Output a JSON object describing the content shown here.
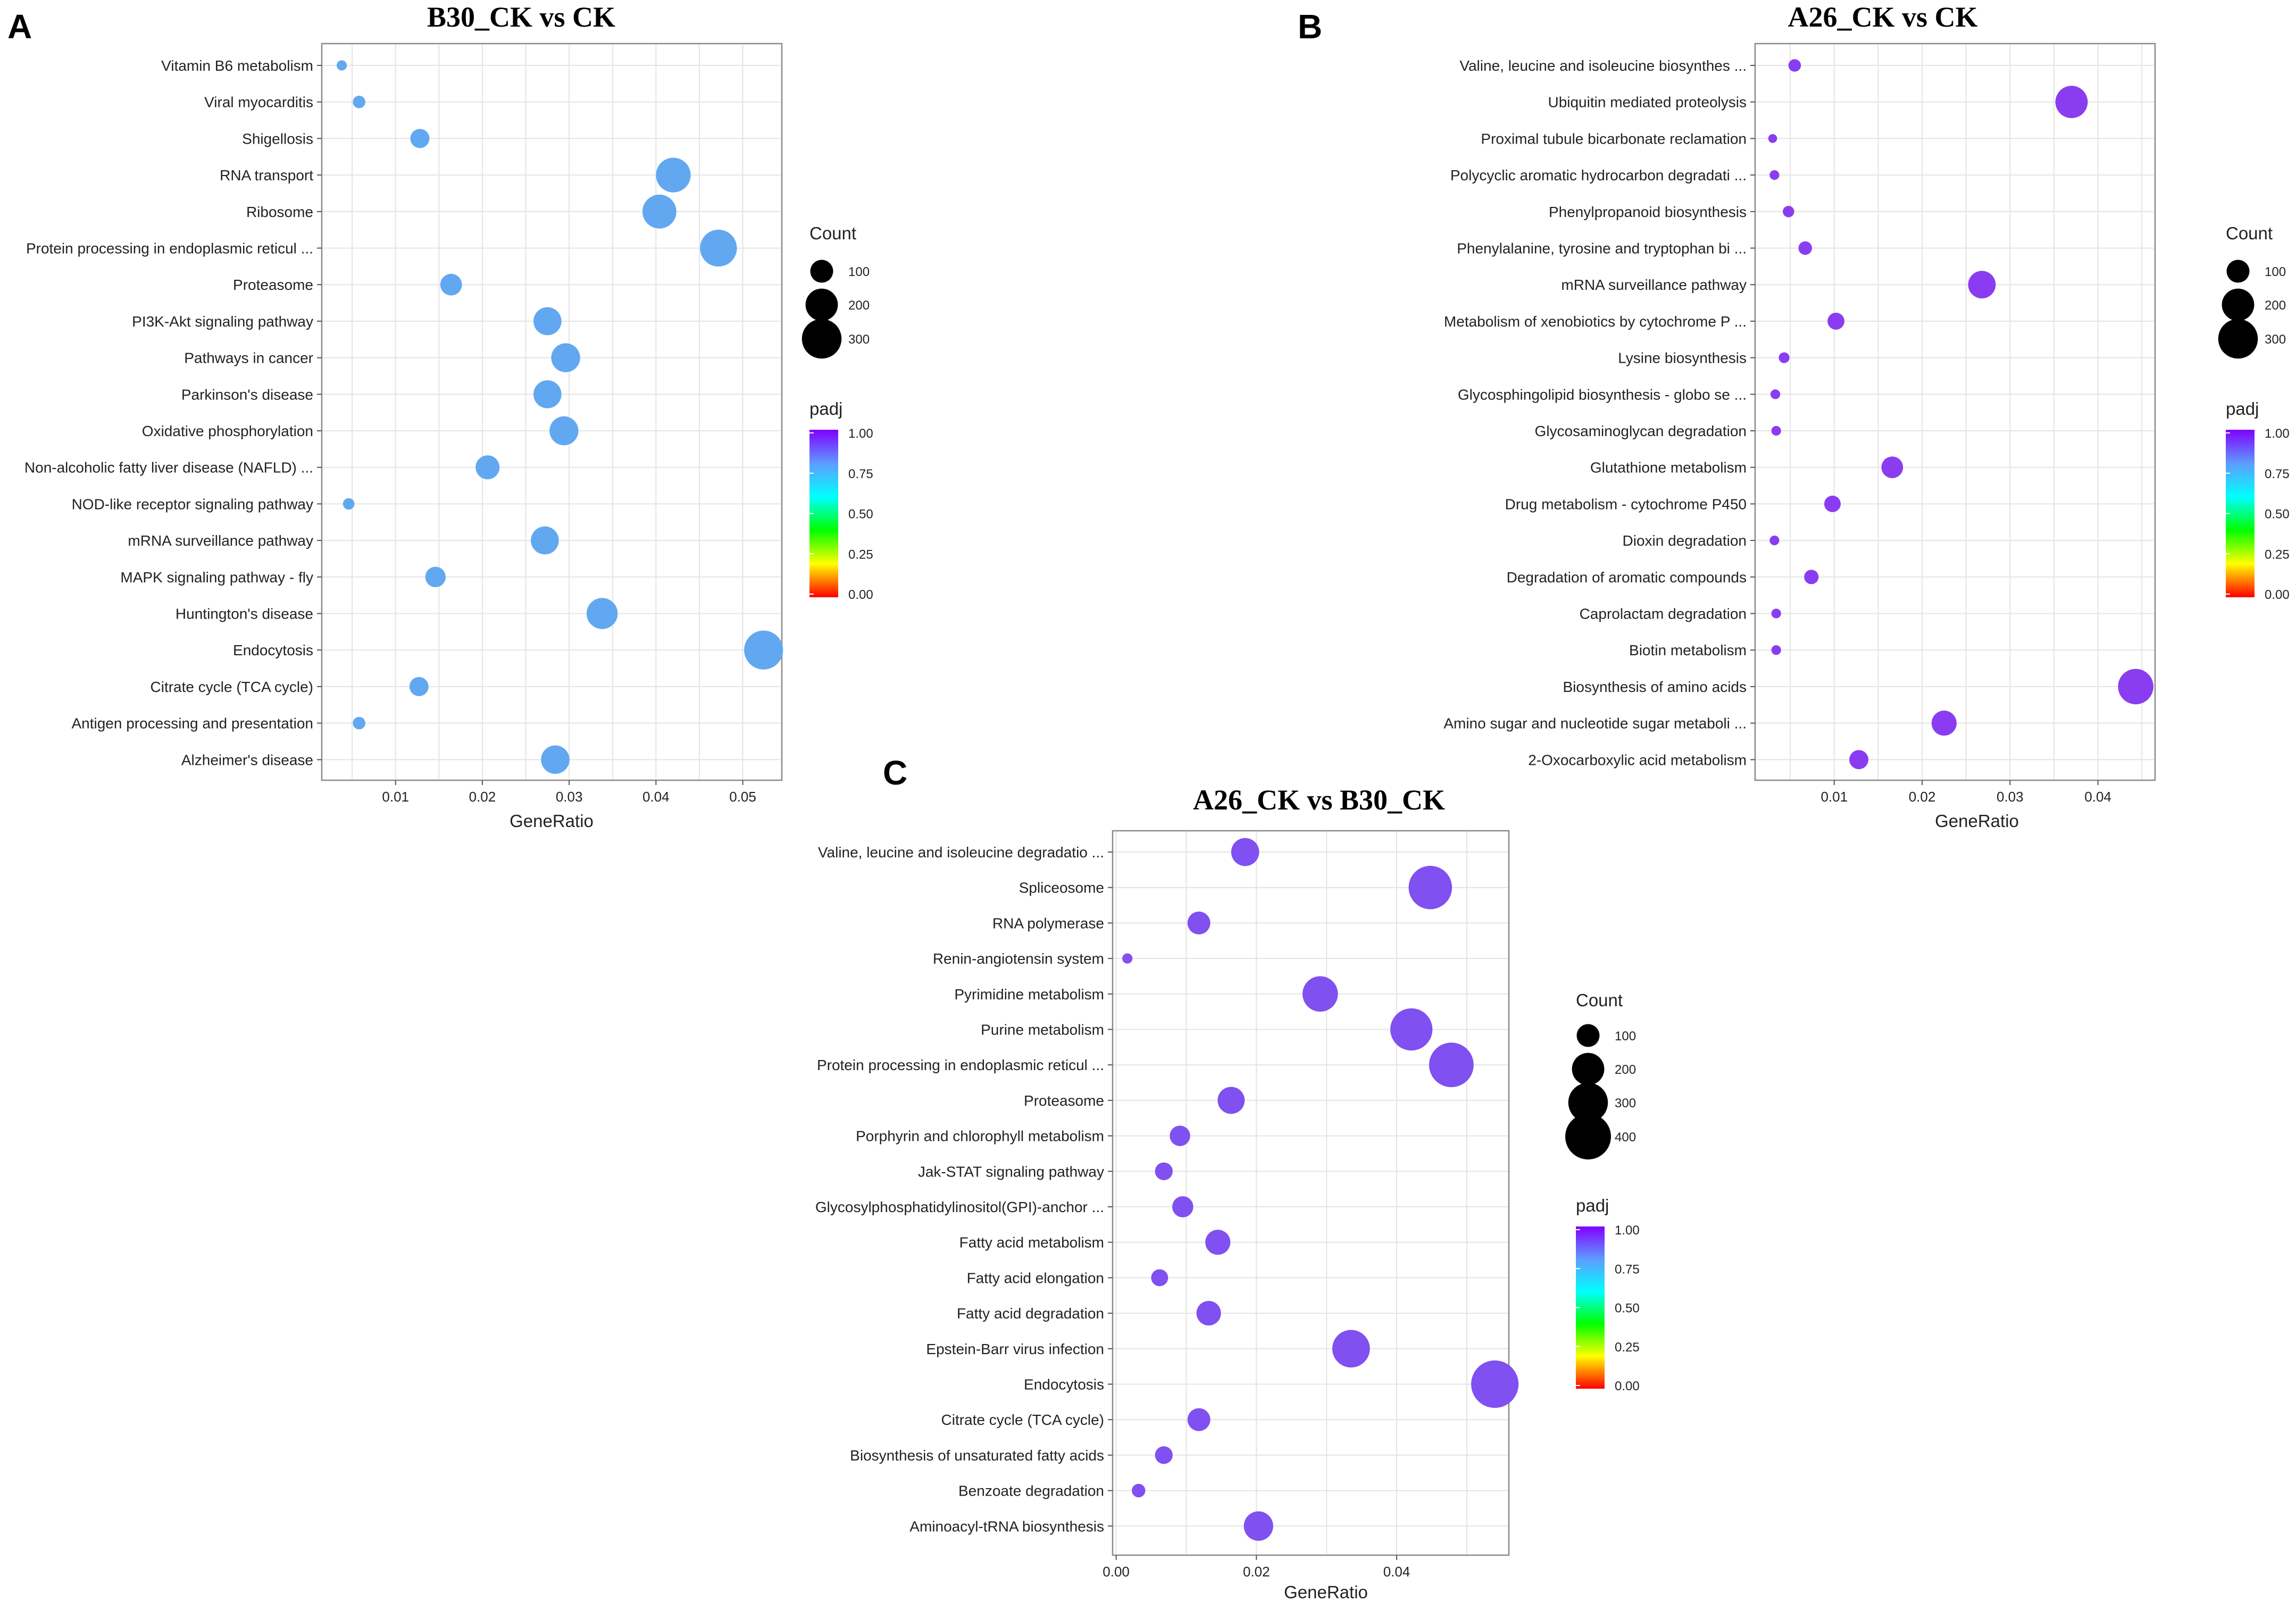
{
  "panels": {
    "A": "A",
    "B": "B",
    "C": "C"
  },
  "colors": {
    "scale_low": "#ff0000",
    "scale_mid1": "#ffff00",
    "scale_mid2": "#00ff00",
    "scale_mid3": "#00ffff",
    "scale_mid4": "#5f9bff",
    "scale_high": "#8000ff"
  },
  "chart_data": [
    {
      "panel": "A",
      "type": "scatter",
      "title": "B30_CK vs CK",
      "xlabel": "GeneRatio",
      "ylabel": "",
      "xlim": [
        0.0015,
        0.0545
      ],
      "xticks": [
        0.01,
        0.02,
        0.03,
        0.04,
        0.05
      ],
      "xtick_labels": [
        "0.01",
        "0.02",
        "0.03",
        "0.04",
        "0.05"
      ],
      "grid": true,
      "color": "#62a8f0",
      "categories": [
        "Vitamin B6 metabolism",
        "Viral myocarditis",
        "Shigellosis",
        "RNA transport",
        "Ribosome",
        "Protein processing in endoplasmic reticul ...",
        "Proteasome",
        "PI3K-Akt signaling pathway",
        "Pathways in cancer",
        "Parkinson's disease",
        "Oxidative phosphorylation",
        "Non-alcoholic fatty liver disease (NAFLD) ...",
        "NOD-like receptor signaling pathway",
        "mRNA surveillance pathway",
        "MAPK signaling pathway - fly",
        "Huntington's disease",
        "Endocytosis",
        "Citrate cycle (TCA cycle)",
        "Antigen processing and presentation",
        "Alzheimer's disease"
      ],
      "gene_ratio": [
        0.0038,
        0.0058,
        0.0128,
        0.042,
        0.0404,
        0.0472,
        0.0164,
        0.0275,
        0.0296,
        0.0275,
        0.0294,
        0.0206,
        0.0046,
        0.0272,
        0.0146,
        0.0338,
        0.0524,
        0.0127,
        0.0058,
        0.0284
      ],
      "count": [
        20,
        30,
        70,
        230,
        220,
        260,
        90,
        150,
        160,
        150,
        160,
        110,
        25,
        150,
        80,
        185,
        290,
        70,
        30,
        155
      ],
      "padj": [
        0.85,
        0.85,
        0.85,
        0.85,
        0.85,
        0.85,
        0.85,
        0.85,
        0.85,
        0.85,
        0.85,
        0.85,
        0.85,
        0.85,
        0.85,
        0.85,
        0.85,
        0.85,
        0.85,
        0.85
      ],
      "legend": {
        "size_title": "Count",
        "size_values": [
          100,
          200,
          300
        ],
        "size_labels": [
          "100",
          "200",
          "300"
        ],
        "color_title": "padj",
        "color_ticks": [
          "1.00",
          "0.75",
          "0.50",
          "0.25",
          "0.00"
        ]
      }
    },
    {
      "panel": "B",
      "type": "scatter",
      "title": "A26_CK vs CK",
      "xlabel": "GeneRatio",
      "ylabel": "",
      "xlim": [
        0.001,
        0.0465
      ],
      "xticks": [
        0.01,
        0.02,
        0.03,
        0.04
      ],
      "xtick_labels": [
        "0.01",
        "0.02",
        "0.03",
        "0.04"
      ],
      "grid": true,
      "color": "#8a3df0",
      "categories": [
        "Valine, leucine and isoleucine biosynthes ...",
        "Ubiquitin mediated proteolysis",
        "Proximal tubule bicarbonate reclamation",
        "Polycyclic aromatic hydrocarbon degradati ...",
        "Phenylpropanoid biosynthesis",
        "Phenylalanine, tyrosine and tryptophan bi ...",
        "mRNA surveillance pathway",
        "Metabolism of xenobiotics by cytochrome P ...",
        "Lysine biosynthesis",
        "Glycosphingolipid biosynthesis - globo se ...",
        "Glycosaminoglycan degradation",
        "Glutathione metabolism",
        "Drug metabolism - cytochrome P450",
        "Dioxin degradation",
        "Degradation of aromatic compounds",
        "Caprolactam degradation",
        "Biotin metabolism",
        "Biosynthesis of amino acids",
        "Amino sugar and nucleotide sugar metaboli ...",
        "2-Oxocarboxylic acid metabolism"
      ],
      "gene_ratio": [
        0.0055,
        0.037,
        0.003,
        0.0032,
        0.0048,
        0.0067,
        0.0268,
        0.0102,
        0.0043,
        0.0033,
        0.0034,
        0.0166,
        0.0098,
        0.0032,
        0.0074,
        0.0034,
        0.0034,
        0.0443,
        0.0225,
        0.0128
      ],
      "count": [
        30,
        200,
        15,
        18,
        25,
        35,
        145,
        55,
        22,
        18,
        18,
        90,
        52,
        18,
        40,
        18,
        18,
        240,
        120,
        70
      ],
      "padj": [
        0.95,
        0.95,
        0.95,
        0.95,
        0.95,
        0.95,
        0.95,
        0.95,
        0.95,
        0.95,
        0.95,
        0.95,
        0.95,
        0.95,
        0.95,
        0.95,
        0.95,
        0.95,
        0.95,
        0.95
      ],
      "legend": {
        "size_title": "Count",
        "size_values": [
          100,
          200,
          300
        ],
        "size_labels": [
          "100",
          "200",
          "300"
        ],
        "color_title": "padj",
        "color_ticks": [
          "1.00",
          "0.75",
          "0.50",
          "0.25",
          "0.00"
        ]
      }
    },
    {
      "panel": "C",
      "type": "scatter",
      "title": "A26_CK vs B30_CK",
      "xlabel": "GeneRatio",
      "ylabel": "",
      "xlim": [
        -0.0005,
        0.056
      ],
      "xticks": [
        0.0,
        0.02,
        0.04
      ],
      "xtick_labels": [
        "0.00",
        "0.02",
        "0.04"
      ],
      "grid": true,
      "color": "#8050f0",
      "categories": [
        "Valine, leucine and isoleucine degradatio ...",
        "Spliceosome",
        "RNA polymerase",
        "Renin-angiotensin system",
        "Pyrimidine metabolism",
        "Purine metabolism",
        "Protein processing in endoplasmic reticul ...",
        "Proteasome",
        "Porphyrin and chlorophyll metabolism",
        "Jak-STAT signaling pathway",
        "Glycosylphosphatidylinositol(GPI)-anchor  ...",
        "Fatty acid metabolism",
        "Fatty acid elongation",
        "Fatty acid degradation",
        "Epstein-Barr virus infection",
        "Endocytosis",
        "Citrate cycle (TCA cycle)",
        "Biosynthesis of unsaturated fatty acids",
        "Benzoate degradation",
        "Aminoacyl-tRNA biosynthesis"
      ],
      "gene_ratio": [
        0.0184,
        0.0448,
        0.0118,
        0.0016,
        0.0291,
        0.0421,
        0.0478,
        0.0164,
        0.0091,
        0.0068,
        0.0095,
        0.0145,
        0.0062,
        0.0132,
        0.0335,
        0.054,
        0.0118,
        0.0068,
        0.0032,
        0.0203
      ],
      "count": [
        150,
        360,
        100,
        20,
        240,
        340,
        380,
        140,
        80,
        60,
        85,
        120,
        55,
        115,
        270,
        430,
        100,
        60,
        35,
        165
      ],
      "padj": [
        0.9,
        0.9,
        0.9,
        0.9,
        0.9,
        0.9,
        0.9,
        0.9,
        0.9,
        0.9,
        0.9,
        0.9,
        0.9,
        0.9,
        0.9,
        0.9,
        0.9,
        0.9,
        0.9,
        0.9
      ],
      "legend": {
        "size_title": "Count",
        "size_values": [
          100,
          200,
          300,
          400
        ],
        "size_labels": [
          "100",
          "200",
          "300",
          "400"
        ],
        "color_title": "padj",
        "color_ticks": [
          "1.00",
          "0.75",
          "0.50",
          "0.25",
          "0.00"
        ]
      }
    }
  ]
}
